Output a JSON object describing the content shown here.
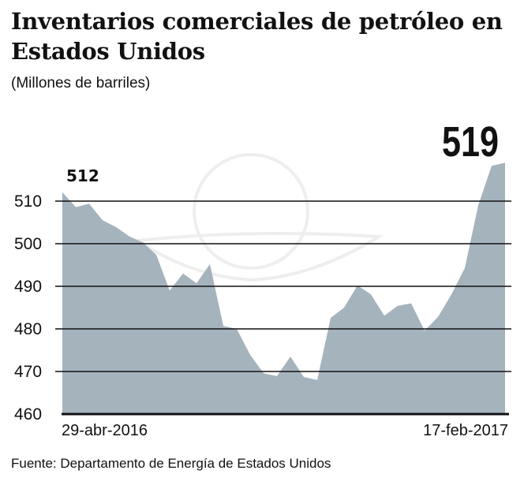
{
  "chart_data": {
    "type": "area",
    "title": "Inventarios comerciales de petróleo en Estados Unidos",
    "subtitle": "(Millones de barriles)",
    "x_labels": {
      "start": "29-abr-2016",
      "end": "17-feb-2017"
    },
    "values": [
      512.1,
      508.6,
      509.4,
      505.5,
      503.9,
      501.7,
      500.3,
      497.4,
      489,
      493,
      490.7,
      495.2,
      480.7,
      480,
      473.9,
      469.6,
      468.9,
      473.5,
      468.7,
      468,
      482.6,
      485,
      490.2,
      488.1,
      483.1,
      485.4,
      486,
      479.6,
      482.8,
      488.1,
      494.3,
      509,
      518.3,
      519
    ],
    "ylim": [
      460,
      520
    ],
    "yticks": [
      460,
      470,
      480,
      490,
      500,
      510
    ],
    "grid": true,
    "color": "#a5b3bd",
    "annotations": {
      "start": "512",
      "end": "519"
    },
    "source": "Fuente: Departamento de Energía de Estados Unidos"
  }
}
